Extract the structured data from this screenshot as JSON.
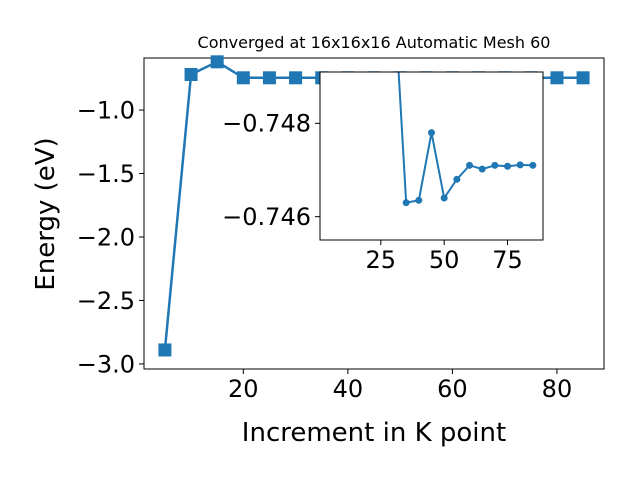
{
  "chart_data": [
    {
      "type": "line",
      "title": "Converged at 16x16x16 Automatic Mesh 60",
      "xlabel": "Increment in K point",
      "ylabel": "Energy (eV)",
      "xlim": [
        1,
        89
      ],
      "ylim": [
        -3.04,
        -0.59
      ],
      "xticks": [
        20,
        40,
        60,
        80
      ],
      "yticks": [
        -1.0,
        -1.5,
        -2.0,
        -2.5,
        -3.0
      ],
      "xtick_labels": [
        "20",
        "40",
        "60",
        "80"
      ],
      "ytick_labels": [
        "−1.0",
        "−1.5",
        "−2.0",
        "−2.5",
        "−3.0"
      ],
      "marker": "square",
      "color": "#1f77b4",
      "grid": false,
      "series": [
        {
          "x": [
            5,
            10,
            15,
            20,
            25,
            30,
            35,
            40,
            45,
            50,
            55,
            60,
            65,
            70,
            75,
            80,
            85
          ],
          "y": [
            -2.89,
            -0.72,
            -0.62,
            -0.746,
            -0.746,
            -0.746,
            -0.746,
            -0.746,
            -0.746,
            -0.746,
            -0.746,
            -0.746,
            -0.746,
            -0.746,
            -0.746,
            -0.746,
            -0.746
          ]
        }
      ]
    },
    {
      "type": "line",
      "title": "",
      "xlabel": "",
      "ylabel": "",
      "xlim": [
        1,
        89
      ],
      "ylim": [
        -0.7455,
        -0.7491
      ],
      "y_axis_inverted": true,
      "xticks": [
        25,
        50,
        75
      ],
      "yticks": [
        -0.748,
        -0.746
      ],
      "xtick_labels": [
        "25",
        "50",
        "75"
      ],
      "ytick_labels": [
        "−0.748",
        "−0.746"
      ],
      "marker": "circle",
      "color": "#1f77b4",
      "grid": false,
      "series": [
        {
          "x": [
            30,
            35,
            40,
            45,
            50,
            55,
            60,
            65,
            70,
            75,
            80,
            85
          ],
          "y": [
            -0.751,
            -0.7463,
            -0.74635,
            -0.7478,
            -0.7464,
            -0.7468,
            -0.7471,
            -0.74702,
            -0.7471,
            -0.74708,
            -0.74711,
            -0.7471
          ]
        }
      ]
    }
  ]
}
